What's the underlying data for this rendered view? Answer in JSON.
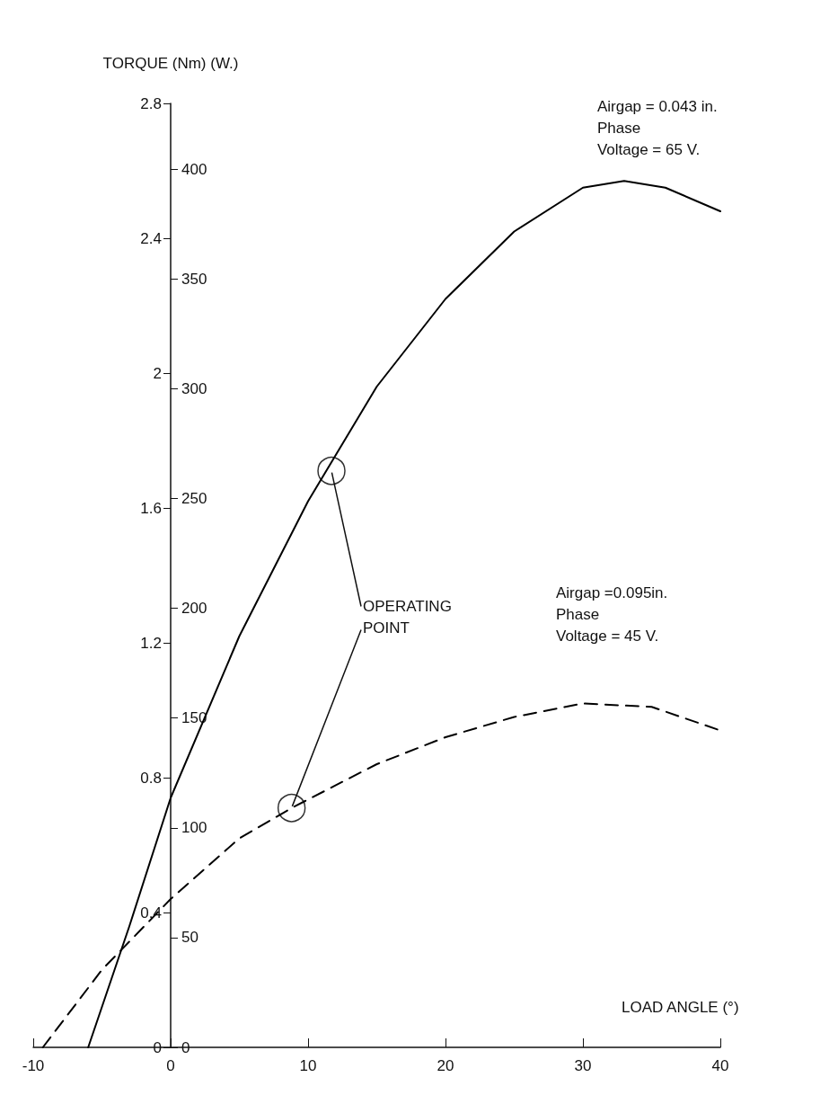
{
  "chart_data": {
    "type": "line",
    "xlabel": "LOAD ANGLE (°)",
    "ylabel": "TORQUE (Nm) (W.)",
    "xlim": [
      -10,
      40
    ],
    "xticks": [
      -10,
      0,
      10,
      20,
      30,
      40
    ],
    "ylim": [
      0,
      2.8
    ],
    "yticks": [
      0,
      0.4,
      0.8,
      1.2,
      1.6,
      2.0,
      2.4,
      2.8
    ],
    "y2lim": [
      0,
      430
    ],
    "y2ticks": [
      0,
      50,
      100,
      150,
      200,
      250,
      300,
      350,
      400
    ],
    "grid": false,
    "series": [
      {
        "color": "#000000",
        "line_style": "solid",
        "marker": "none",
        "x": [
          -6,
          -3,
          0,
          5,
          10,
          15,
          20,
          25,
          30,
          33,
          36,
          40
        ],
        "values": [
          0,
          0.36,
          0.74,
          1.22,
          1.62,
          1.96,
          2.22,
          2.42,
          2.55,
          2.57,
          2.55,
          2.48
        ]
      },
      {
        "color": "#000000",
        "line_style": "dashed",
        "marker": "none",
        "x": [
          -9.3,
          -5,
          0,
          5,
          8.8,
          15,
          20,
          25,
          30,
          35,
          40
        ],
        "values": [
          0,
          0.23,
          0.44,
          0.62,
          0.71,
          0.84,
          0.92,
          0.98,
          1.02,
          1.01,
          0.94
        ]
      },
      {
        "type": "scatter",
        "color": "#000000",
        "marker": "circle",
        "x": [
          11.7,
          8.8
        ],
        "values": [
          1.71,
          0.71
        ]
      }
    ],
    "annotations": [
      "Airgap = 0.043 in.\nPhase\nVoltage = 65 V.",
      "Airgap =0.095in.\nPhase\nVoltage = 45 V.",
      {
        "text": "OPERATING\nPOINT",
        "x": 11.7,
        "y": 1.71
      }
    ]
  }
}
